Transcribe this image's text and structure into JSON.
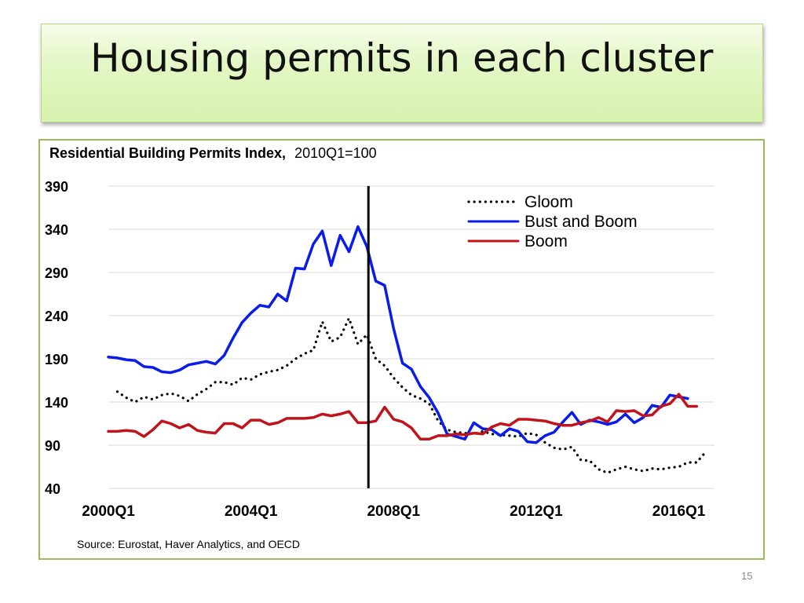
{
  "slide": {
    "title": "Housing permits in each cluster",
    "page_number": "15"
  },
  "colors": {
    "gloom": "#000000",
    "bust_and_boom": "#0a1de8",
    "boom": "#c0141d",
    "frame": "#9bbb59"
  },
  "chart_data": {
    "type": "line",
    "title_bold": "Residential Building Permits Index,",
    "title_rest": "2010Q1=100",
    "xlabel": "",
    "ylabel": "",
    "ylim": [
      40,
      390
    ],
    "yticks": [
      390,
      340,
      290,
      240,
      190,
      140,
      90,
      40
    ],
    "xticks": [
      {
        "label": "2000Q1",
        "index": 0
      },
      {
        "label": "2004Q1",
        "index": 16
      },
      {
        "label": "2008Q1",
        "index": 32
      },
      {
        "label": "2012Q1",
        "index": 48
      },
      {
        "label": "2016Q1",
        "index": 64
      }
    ],
    "grid": true,
    "legend_position": "top-right",
    "vertical_marker_index": 29,
    "source": "Source: Eurostat, Haver Analytics, and OECD",
    "series": [
      {
        "name": "Gloom",
        "style": "dotted",
        "start_index": 1,
        "values": [
          152,
          145,
          140,
          146,
          143,
          148,
          150,
          147,
          141,
          149,
          155,
          163,
          163,
          160,
          168,
          166,
          172,
          175,
          177,
          182,
          190,
          196,
          200,
          233,
          210,
          215,
          237,
          207,
          218,
          190,
          182,
          168,
          157,
          148,
          144,
          138,
          118,
          108,
          105,
          104,
          103,
          106,
          103,
          102,
          101,
          100,
          104,
          102,
          93,
          87,
          85,
          88,
          73,
          72,
          62,
          58,
          62,
          65,
          62,
          60,
          63,
          62,
          64,
          65,
          70,
          70,
          82
        ]
      },
      {
        "name": "Bust and Boom",
        "style": "solid",
        "start_index": 0,
        "values": [
          192,
          191,
          189,
          188,
          181,
          180,
          175,
          174,
          177,
          183,
          185,
          187,
          184,
          194,
          214,
          232,
          243,
          252,
          250,
          265,
          257,
          295,
          294,
          323,
          338,
          298,
          333,
          314,
          343,
          320,
          280,
          275,
          225,
          185,
          178,
          158,
          145,
          127,
          103,
          100,
          97,
          116,
          109,
          108,
          101,
          109,
          106,
          94,
          93,
          101,
          105,
          117,
          128,
          114,
          119,
          117,
          114,
          117,
          126,
          116,
          122,
          136,
          134,
          148,
          146,
          144
        ]
      },
      {
        "name": "Boom",
        "style": "solid",
        "start_index": 0,
        "values": [
          106,
          106,
          107,
          106,
          100,
          108,
          118,
          115,
          110,
          114,
          107,
          105,
          104,
          115,
          115,
          110,
          119,
          119,
          114,
          116,
          121,
          121,
          121,
          122,
          126,
          124,
          126,
          129,
          116,
          116,
          118,
          134,
          120,
          117,
          110,
          97,
          97,
          101,
          101,
          103,
          102,
          104,
          103,
          111,
          115,
          113,
          120,
          120,
          119,
          118,
          115,
          113,
          113,
          116,
          118,
          122,
          117,
          130,
          129,
          130,
          124,
          125,
          135,
          138,
          149,
          135,
          135
        ]
      }
    ]
  }
}
